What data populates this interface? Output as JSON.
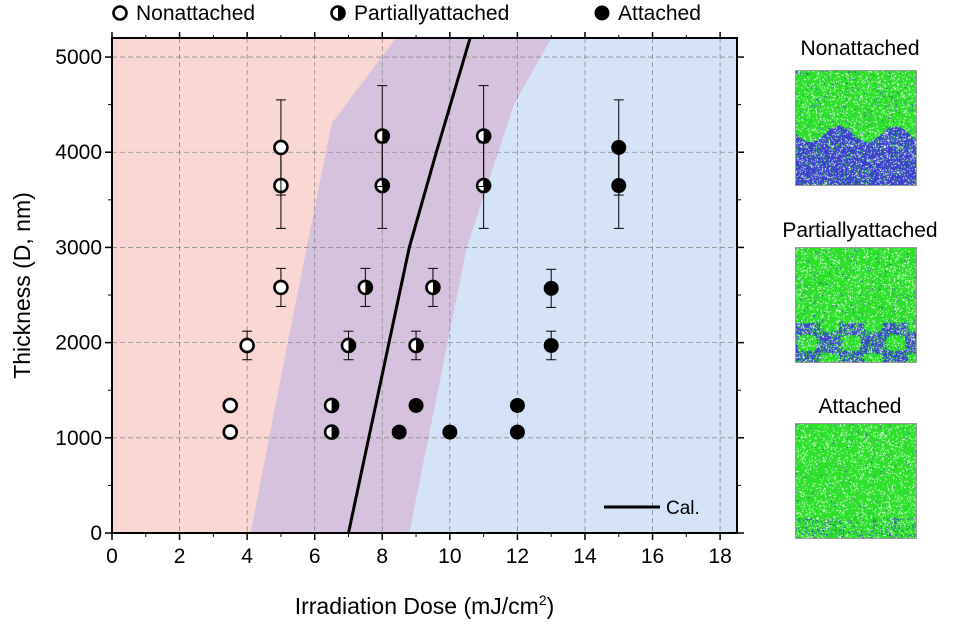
{
  "chart_data": {
    "type": "scatter",
    "xlabel": "Irradiation Dose (mJ/cm",
    "xlabel_sup": "2",
    "xlabel_tail": ")",
    "ylabel": "Thickness (D, nm)",
    "xlim": [
      0,
      18.5
    ],
    "ylim": [
      0,
      5200
    ],
    "xticks": [
      0,
      2,
      4,
      6,
      8,
      10,
      12,
      14,
      16,
      18
    ],
    "yticks": [
      0,
      1000,
      2000,
      3000,
      4000,
      5000
    ],
    "grid": true,
    "legend_position": "top",
    "series": [
      {
        "name": "Nonattached",
        "marker": "open-circle",
        "points": [
          {
            "x": 3.5,
            "y": 1060
          },
          {
            "x": 3.5,
            "y": 1340
          },
          {
            "x": 4.0,
            "y": 1970,
            "err": 150
          },
          {
            "x": 5.0,
            "y": 2580,
            "err": 200
          },
          {
            "x": 5.0,
            "y": 3650,
            "err": 450
          },
          {
            "x": 5.0,
            "y": 4050,
            "err": 500
          }
        ]
      },
      {
        "name": "Partiallyattached",
        "marker": "half-filled-circle",
        "points": [
          {
            "x": 6.5,
            "y": 1060
          },
          {
            "x": 6.5,
            "y": 1340
          },
          {
            "x": 7.0,
            "y": 1970,
            "err": 150
          },
          {
            "x": 7.5,
            "y": 2580,
            "err": 200
          },
          {
            "x": 9.0,
            "y": 1970,
            "err": 150
          },
          {
            "x": 9.5,
            "y": 2580,
            "err": 200
          },
          {
            "x": 8.0,
            "y": 3650,
            "err": 450
          },
          {
            "x": 8.0,
            "y": 4170,
            "err": 530
          },
          {
            "x": 11.0,
            "y": 3650,
            "err": 450
          },
          {
            "x": 11.0,
            "y": 4170,
            "err": 530
          }
        ]
      },
      {
        "name": "Attached",
        "marker": "filled-circle",
        "points": [
          {
            "x": 8.5,
            "y": 1060
          },
          {
            "x": 9.0,
            "y": 1340
          },
          {
            "x": 10.0,
            "y": 1060
          },
          {
            "x": 12.0,
            "y": 1060
          },
          {
            "x": 12.0,
            "y": 1340
          },
          {
            "x": 13.0,
            "y": 1970,
            "err": 150
          },
          {
            "x": 13.0,
            "y": 2570,
            "err": 200
          },
          {
            "x": 15.0,
            "y": 3650,
            "err": 450
          },
          {
            "x": 15.0,
            "y": 4050,
            "err": 500
          }
        ]
      }
    ],
    "calc_line": {
      "name": "Cal.",
      "points": [
        [
          7.0,
          0
        ],
        [
          7.6,
          1000
        ],
        [
          8.2,
          2000
        ],
        [
          8.8,
          3000
        ],
        [
          9.6,
          4000
        ],
        [
          10.6,
          5200
        ]
      ]
    },
    "regions": {
      "left_color": "#fbd7d3",
      "middle_color": "#d6c2df",
      "right_color": "#d5e3f8",
      "left_boundary": [
        [
          4.1,
          0
        ],
        [
          5.2,
          2000
        ],
        [
          6.5,
          4300
        ],
        [
          8.4,
          5200
        ]
      ],
      "right_boundary": [
        [
          8.8,
          0
        ],
        [
          10.5,
          3000
        ],
        [
          11.9,
          4500
        ],
        [
          13.0,
          5200
        ]
      ]
    }
  },
  "side_panel": {
    "labels": [
      "Nonattached",
      "Partiallyattached",
      "Attached"
    ],
    "colors": {
      "green": "#2de02b",
      "blue": "#3b3fd0"
    }
  }
}
